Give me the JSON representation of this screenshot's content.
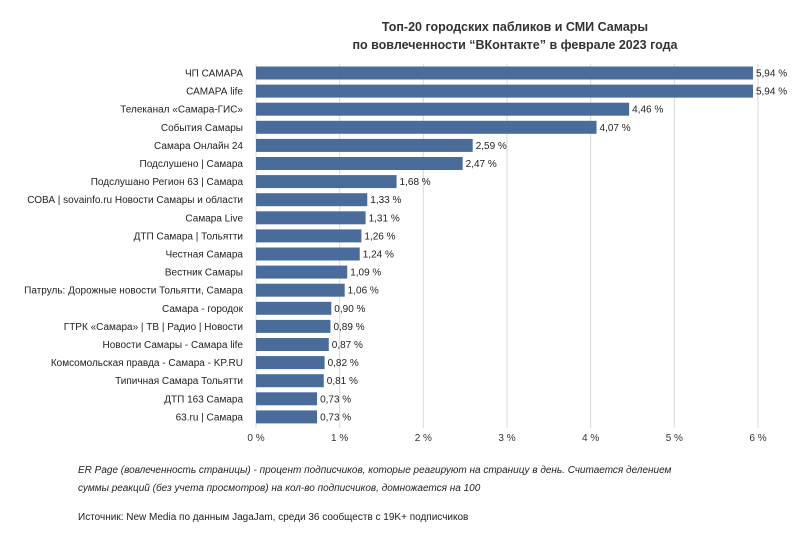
{
  "chart_data": {
    "type": "bar",
    "orientation": "horizontal",
    "title_line1": "Топ-20 городских пабликов и СМИ Самары",
    "title_line2": "по вовлеченности “ВКонтакте” в феврале 2023 года",
    "categories": [
      "ЧП САМАРА",
      "САМАРА life",
      "Телеканал «Самара-ГИС»",
      "События Самары",
      "Самара Онлайн 24",
      "Подслушено | Самара",
      "Подслушано Регион 63 | Самара",
      "СОВА | sovainfo.ru Новости Самары и области",
      "Самара Live",
      "ДТП Самара | Тольятти",
      "Честная Самара",
      "Вестник Самары",
      "Патруль: Дорожные новости Тольятти, Самара",
      "Самара - городок",
      "ГТРК «Самара» | ТВ | Радио | Новости",
      "Новости Самары -  Самара life",
      "Комсомольская правда - Самара - KP.RU",
      "Типичная Самара Тольятти",
      "ДТП 163 Самара",
      "63.ru | Самара"
    ],
    "values": [
      5.94,
      5.94,
      4.46,
      4.07,
      2.59,
      2.47,
      1.68,
      1.33,
      1.31,
      1.26,
      1.24,
      1.09,
      1.06,
      0.9,
      0.89,
      0.87,
      0.82,
      0.81,
      0.73,
      0.73
    ],
    "value_labels": [
      "5,94 %",
      "5,94 %",
      "4,46 %",
      "4,07 %",
      "2,59 %",
      "2,47 %",
      "1,68 %",
      "1,33 %",
      "1,31 %",
      "1,26 %",
      "1,24 %",
      "1,09 %",
      "1,06 %",
      "0,90 %",
      "0,89 %",
      "0,87 %",
      "0,82 %",
      "0,81 %",
      "0,73 %",
      "0,73 %"
    ],
    "x_ticks": [
      0,
      1,
      2,
      3,
      4,
      5,
      6
    ],
    "x_tick_labels": [
      "0 %",
      "1 %",
      "2 %",
      "3 %",
      "4 %",
      "5 %",
      "6 %"
    ],
    "xlim": [
      0,
      6
    ],
    "xlabel": "",
    "ylabel": "",
    "grid": true,
    "colors": {
      "bar": "#4a6c9b",
      "grid": "#d9d9d9"
    }
  },
  "notes": {
    "footnote_line1": "ER Page (вовлеченность страницы) - процент подписчиков, которые реагируют на страницу в день. Считается делением",
    "footnote_line2": "суммы реакций (без учета просмотров) на кол-во подписчиков, домножается на 100",
    "source": "Источник: New Media по данным JagaJam, среди 36 сообществ с 19K+ подписчиков"
  }
}
